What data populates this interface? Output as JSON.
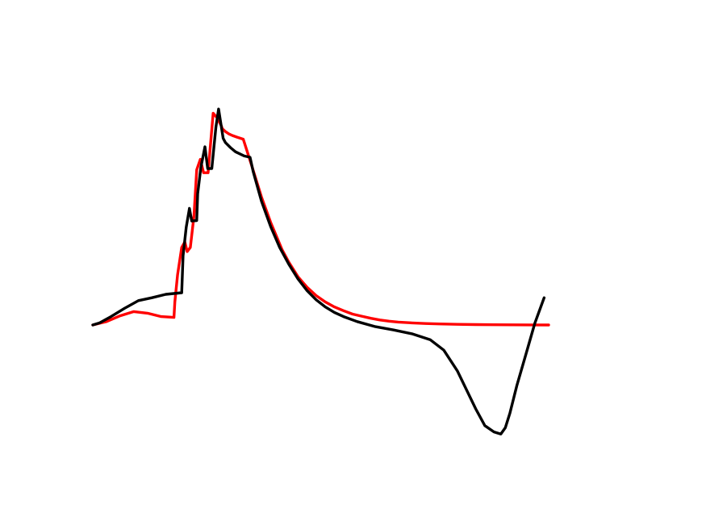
{
  "chart_data": {
    "type": "line",
    "title": "",
    "xlabel": "",
    "ylabel": "",
    "grid": false,
    "legend": "none",
    "axes_visible": false,
    "xlim": [
      0,
      100
    ],
    "ylim": [
      -25,
      70
    ],
    "series": [
      {
        "color": "#ff0000",
        "x": [
          0,
          3,
          6,
          9,
          12,
          15,
          17.8,
          18,
          18.6,
          19.5,
          20.2,
          20.7,
          21.4,
          22.2,
          22.8,
          23.6,
          24.3,
          25.3,
          26.4,
          27.2,
          28.2,
          28.4,
          29.0,
          29.8,
          30.6,
          31.6,
          33,
          35,
          37,
          39,
          41.5,
          43,
          45,
          47,
          49,
          51,
          53,
          55,
          57,
          59,
          61,
          63,
          65,
          67,
          70,
          73,
          76,
          80,
          84,
          88,
          92,
          96,
          100
        ],
        "y": [
          0,
          0.8,
          2.2,
          3.2,
          2.8,
          2.0,
          1.8,
          5.5,
          12,
          18.5,
          19.8,
          17.5,
          18.5,
          26,
          37,
          39.5,
          36.3,
          36.3,
          50.5,
          49.5,
          47.5,
          46.8,
          46.2,
          45.6,
          45.2,
          44.8,
          44.3,
          37.5,
          30.5,
          24.5,
          18.0,
          15.0,
          11.5,
          9.0,
          7.0,
          5.5,
          4.3,
          3.4,
          2.6,
          2.1,
          1.6,
          1.2,
          0.9,
          0.7,
          0.5,
          0.35,
          0.25,
          0.15,
          0.1,
          0.05,
          0.03,
          0.02,
          0
        ]
      },
      {
        "color": "#000000",
        "x": [
          0,
          1.5,
          4,
          7,
          10,
          13,
          16,
          19.5,
          19.8,
          20.5,
          21.2,
          21.7,
          22.8,
          23.0,
          23.7,
          24.6,
          25.2,
          26.1,
          27.0,
          27.6,
          28.6,
          29.1,
          30.2,
          31.3,
          33.2,
          34.5,
          35.2,
          37,
          39,
          41,
          43,
          45,
          47,
          49,
          51,
          53,
          55,
          58,
          62,
          66,
          70,
          74,
          77,
          80,
          82,
          84,
          86,
          88,
          89.5,
          90.5,
          91.5,
          93,
          95,
          97,
          99
        ],
        "y": [
          0,
          0.5,
          2.0,
          4.0,
          5.8,
          6.5,
          7.3,
          7.7,
          16.5,
          23.3,
          27.8,
          24.8,
          24.9,
          31.3,
          37.5,
          42.5,
          37.3,
          37.3,
          47.2,
          51.5,
          44.5,
          43.5,
          42.3,
          41.3,
          40.3,
          40.0,
          36.5,
          29.5,
          23.5,
          18.5,
          14.5,
          11.0,
          8.2,
          6.0,
          4.3,
          3.0,
          2.0,
          0.8,
          -0.4,
          -1.2,
          -2.1,
          -3.5,
          -6.0,
          -11.0,
          -15.5,
          -20.0,
          -24.0,
          -25.5,
          -26.0,
          -24.5,
          -21.0,
          -14.5,
          -7.0,
          0.5,
          6.5
        ]
      }
    ]
  }
}
